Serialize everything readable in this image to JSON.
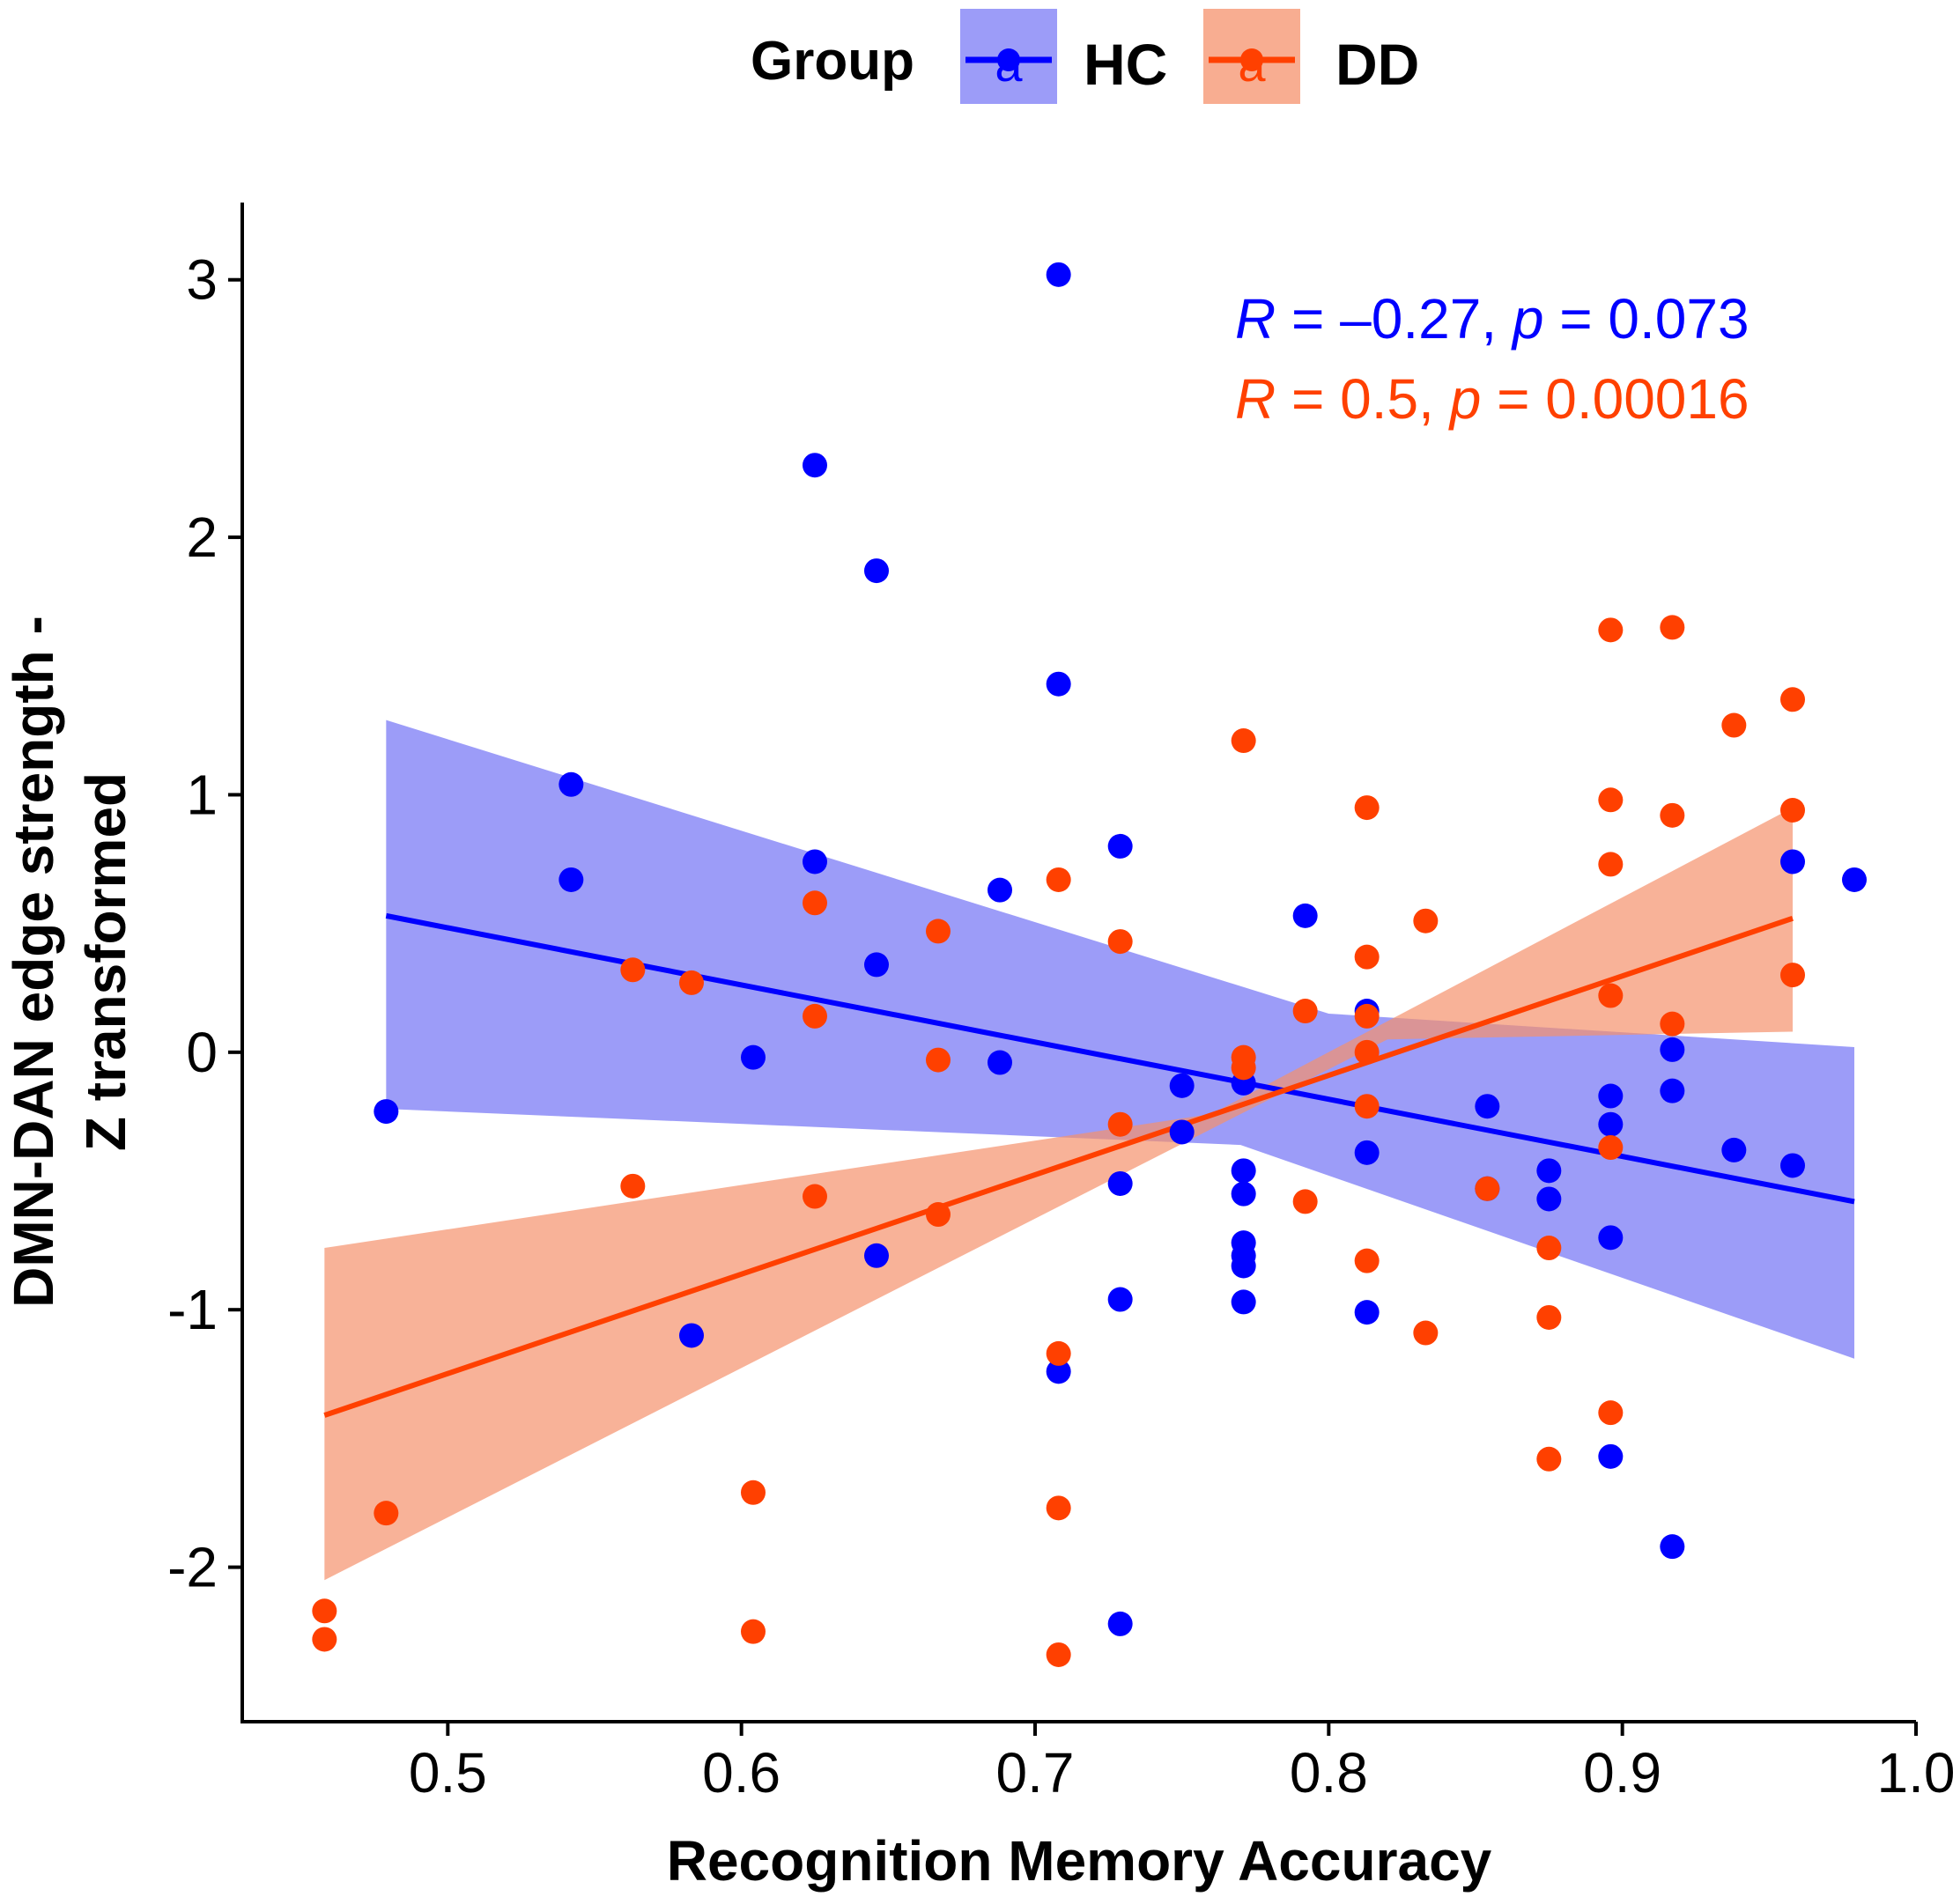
{
  "chart_data": {
    "type": "scatter",
    "title": "",
    "xlabel": "Recognition Memory Accuracy",
    "ylabel_line1": "DMN-DAN edge strength -",
    "ylabel_line2": "Z transformed",
    "xlim": [
      0.43,
      1.0
    ],
    "ylim": [
      -2.6,
      3.3
    ],
    "xticks": [
      0.5,
      0.6,
      0.7,
      0.8,
      0.9,
      1.0
    ],
    "xtick_labels": [
      "0.5",
      "0.6",
      "0.7",
      "0.8",
      "0.9",
      "1.0"
    ],
    "yticks": [
      -2,
      -1,
      0,
      1,
      2,
      3
    ],
    "ytick_labels": [
      "-2",
      "-1",
      "0",
      "1",
      "2",
      "3"
    ],
    "grid": false,
    "legend": {
      "title": "Group",
      "position": "top",
      "key_glyph": "a",
      "entries": [
        "HC",
        "DD"
      ]
    },
    "annotations": [
      {
        "R_label": "R",
        "R_value": " = –0.27, ",
        "p_label": "p",
        "p_value": " = 0.073",
        "color": "#0000FF"
      },
      {
        "R_label": "R",
        "R_value": " = 0.5, ",
        "p_label": "p",
        "p_value": " = 0.00016",
        "color": "#FF4000"
      }
    ],
    "series": [
      {
        "name": "HC",
        "color": "#0000FF",
        "band_color": "#7B7BF5",
        "band_opacity": 0.75,
        "fit": {
          "x": [
            0.479,
            0.979
          ],
          "y": [
            0.53,
            -0.58
          ]
        },
        "band_upper": {
          "x": [
            0.479,
            0.8,
            0.979
          ],
          "y": [
            1.29,
            0.15,
            0.02
          ]
        },
        "band_lower": {
          "x": [
            0.479,
            0.77,
            0.979
          ],
          "y": [
            -0.22,
            -0.36,
            -1.19
          ]
        },
        "points": [
          {
            "x": 0.479,
            "y": -0.23
          },
          {
            "x": 0.542,
            "y": 1.04
          },
          {
            "x": 0.542,
            "y": 0.67
          },
          {
            "x": 0.583,
            "y": -1.1
          },
          {
            "x": 0.604,
            "y": -0.02
          },
          {
            "x": 0.625,
            "y": 2.28
          },
          {
            "x": 0.625,
            "y": 0.74
          },
          {
            "x": 0.646,
            "y": 1.87
          },
          {
            "x": 0.646,
            "y": 0.34
          },
          {
            "x": 0.646,
            "y": -0.79
          },
          {
            "x": 0.688,
            "y": 0.63
          },
          {
            "x": 0.688,
            "y": -0.04
          },
          {
            "x": 0.708,
            "y": 3.02
          },
          {
            "x": 0.708,
            "y": 1.43
          },
          {
            "x": 0.708,
            "y": -1.24
          },
          {
            "x": 0.729,
            "y": 0.8
          },
          {
            "x": 0.729,
            "y": -0.51
          },
          {
            "x": 0.729,
            "y": -0.96
          },
          {
            "x": 0.729,
            "y": -2.22
          },
          {
            "x": 0.75,
            "y": -0.13
          },
          {
            "x": 0.75,
            "y": -0.31
          },
          {
            "x": 0.771,
            "y": -0.12
          },
          {
            "x": 0.771,
            "y": -0.46
          },
          {
            "x": 0.771,
            "y": -0.55
          },
          {
            "x": 0.771,
            "y": -0.74
          },
          {
            "x": 0.771,
            "y": -0.83
          },
          {
            "x": 0.771,
            "y": -0.97
          },
          {
            "x": 0.771,
            "y": -0.79
          },
          {
            "x": 0.792,
            "y": 0.53
          },
          {
            "x": 0.813,
            "y": 0.16
          },
          {
            "x": 0.813,
            "y": -0.39
          },
          {
            "x": 0.813,
            "y": -1.01
          },
          {
            "x": 0.854,
            "y": -0.21
          },
          {
            "x": 0.854,
            "y": -0.53
          },
          {
            "x": 0.875,
            "y": -0.46
          },
          {
            "x": 0.875,
            "y": -0.57
          },
          {
            "x": 0.896,
            "y": -0.17
          },
          {
            "x": 0.896,
            "y": -0.28
          },
          {
            "x": 0.896,
            "y": -0.72
          },
          {
            "x": 0.896,
            "y": -1.57
          },
          {
            "x": 0.917,
            "y": 0.01
          },
          {
            "x": 0.917,
            "y": -0.15
          },
          {
            "x": 0.917,
            "y": -1.92
          },
          {
            "x": 0.938,
            "y": -0.38
          },
          {
            "x": 0.958,
            "y": 0.74
          },
          {
            "x": 0.958,
            "y": -0.44
          },
          {
            "x": 0.979,
            "y": 0.67
          }
        ]
      },
      {
        "name": "DD",
        "color": "#FF4000",
        "band_color": "#F5926C",
        "band_opacity": 0.7,
        "fit": {
          "x": [
            0.458,
            0.958
          ],
          "y": [
            -1.41,
            0.52
          ]
        },
        "band_upper": {
          "x": [
            0.458,
            0.76,
            0.958
          ],
          "y": [
            -0.76,
            -0.24,
            0.95
          ]
        },
        "band_lower": {
          "x": [
            0.458,
            0.82,
            0.958
          ],
          "y": [
            -2.05,
            0.05,
            0.08
          ]
        },
        "points": [
          {
            "x": 0.458,
            "y": -2.17
          },
          {
            "x": 0.458,
            "y": -2.28
          },
          {
            "x": 0.479,
            "y": -1.79
          },
          {
            "x": 0.563,
            "y": 0.32
          },
          {
            "x": 0.563,
            "y": -0.52
          },
          {
            "x": 0.583,
            "y": 0.27
          },
          {
            "x": 0.604,
            "y": -1.71
          },
          {
            "x": 0.604,
            "y": -2.25
          },
          {
            "x": 0.625,
            "y": 0.58
          },
          {
            "x": 0.625,
            "y": 0.14
          },
          {
            "x": 0.625,
            "y": -0.56
          },
          {
            "x": 0.667,
            "y": 0.47
          },
          {
            "x": 0.667,
            "y": -0.03
          },
          {
            "x": 0.667,
            "y": -0.63
          },
          {
            "x": 0.708,
            "y": 0.67
          },
          {
            "x": 0.708,
            "y": -1.17
          },
          {
            "x": 0.708,
            "y": -1.77
          },
          {
            "x": 0.708,
            "y": -2.34
          },
          {
            "x": 0.729,
            "y": 0.43
          },
          {
            "x": 0.729,
            "y": -0.28
          },
          {
            "x": 0.771,
            "y": 1.21
          },
          {
            "x": 0.771,
            "y": -0.02
          },
          {
            "x": 0.771,
            "y": -0.06
          },
          {
            "x": 0.792,
            "y": 0.16
          },
          {
            "x": 0.792,
            "y": -0.58
          },
          {
            "x": 0.813,
            "y": 0.95
          },
          {
            "x": 0.813,
            "y": 0.37
          },
          {
            "x": 0.813,
            "y": 0.14
          },
          {
            "x": 0.813,
            "y": 0.0
          },
          {
            "x": 0.813,
            "y": -0.21
          },
          {
            "x": 0.813,
            "y": -0.81
          },
          {
            "x": 0.833,
            "y": 0.51
          },
          {
            "x": 0.833,
            "y": -1.09
          },
          {
            "x": 0.854,
            "y": -0.53
          },
          {
            "x": 0.875,
            "y": -0.76
          },
          {
            "x": 0.875,
            "y": -1.03
          },
          {
            "x": 0.875,
            "y": -1.58
          },
          {
            "x": 0.896,
            "y": 1.64
          },
          {
            "x": 0.896,
            "y": 0.98
          },
          {
            "x": 0.896,
            "y": 0.73
          },
          {
            "x": 0.896,
            "y": 0.22
          },
          {
            "x": 0.896,
            "y": -0.37
          },
          {
            "x": 0.896,
            "y": -1.4
          },
          {
            "x": 0.917,
            "y": 1.65
          },
          {
            "x": 0.917,
            "y": 0.92
          },
          {
            "x": 0.917,
            "y": 0.11
          },
          {
            "x": 0.938,
            "y": 1.27
          },
          {
            "x": 0.958,
            "y": 1.37
          },
          {
            "x": 0.958,
            "y": 0.94
          },
          {
            "x": 0.958,
            "y": 0.3
          }
        ]
      }
    ]
  }
}
